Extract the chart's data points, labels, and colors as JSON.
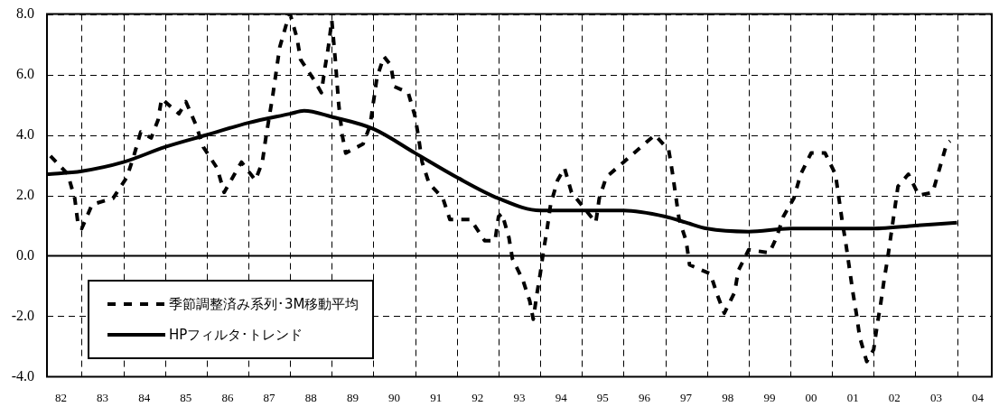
{
  "chart_data": {
    "type": "line",
    "categories": [
      null,
      null,
      null,
      null,
      "82",
      null,
      null,
      null,
      null,
      null,
      null,
      null,
      null,
      null,
      null,
      null,
      "83",
      null,
      null,
      null,
      null,
      null,
      null,
      null,
      null,
      null,
      null,
      null,
      "84",
      null,
      null,
      null,
      null,
      null,
      null,
      null,
      null,
      null,
      null,
      null,
      "85",
      null,
      null,
      null,
      null,
      null,
      null,
      null,
      null,
      null,
      null,
      null,
      "86",
      null,
      null,
      null,
      null,
      null,
      null,
      null,
      null,
      null,
      null,
      null,
      "87",
      null,
      null,
      null,
      null,
      null,
      null,
      null,
      null,
      null,
      null,
      null,
      "88",
      null,
      null,
      null,
      null,
      null,
      null,
      null,
      null,
      null,
      null,
      null,
      "89",
      null,
      null,
      null,
      null,
      null,
      null,
      null,
      null,
      null,
      null,
      null,
      "90",
      null,
      null,
      null,
      null,
      null,
      null,
      null,
      null,
      null,
      null,
      null,
      "91",
      null,
      null,
      null,
      null,
      null,
      null,
      null,
      null,
      null,
      null,
      null,
      "92",
      null,
      null,
      null,
      null,
      null,
      null,
      null,
      null,
      null,
      null,
      null,
      "93",
      null,
      null,
      null,
      null,
      null,
      null,
      null,
      null,
      null,
      null,
      null,
      "94",
      null,
      null,
      null,
      null,
      null,
      null,
      null,
      null,
      null,
      null,
      null,
      "95",
      null,
      null,
      null,
      null,
      null,
      null,
      null,
      null,
      null,
      null,
      null,
      "96",
      null,
      null,
      null,
      null,
      null,
      null,
      null,
      null,
      null,
      null,
      null,
      "97",
      null,
      null,
      null,
      null,
      null,
      null,
      null,
      null,
      null,
      null,
      null,
      "98",
      null,
      null,
      null,
      null,
      null,
      null,
      null,
      null,
      null,
      null,
      null,
      "99",
      null,
      null,
      null,
      null,
      null,
      null,
      null,
      null,
      null,
      null,
      null,
      "00",
      null,
      null,
      null,
      null,
      null,
      null,
      null,
      null,
      null,
      null,
      null,
      "01",
      null,
      null,
      null,
      null,
      null,
      null,
      null,
      null,
      null,
      null,
      null,
      "02",
      null,
      null,
      null,
      null,
      null,
      null,
      null,
      null,
      null,
      null,
      null,
      "03",
      null,
      null,
      null,
      null,
      null,
      null,
      null,
      null,
      null,
      null,
      null,
      "04",
      null,
      null,
      null,
      null
    ],
    "ylim": [
      -4,
      8
    ],
    "yticks": [
      {
        "value": -4,
        "label": "-4.0"
      },
      {
        "value": -2,
        "label": "-2.0"
      },
      {
        "value": 0,
        "label": "0.0"
      },
      {
        "value": 2,
        "label": "2.0"
      },
      {
        "value": 4,
        "label": "4.0"
      },
      {
        "value": 6,
        "label": "6.0"
      },
      {
        "value": 8,
        "label": "8.0"
      }
    ],
    "grid": true,
    "legend": "bottom left",
    "marker": "none",
    "series": [
      {
        "name": "季節調整済み系列･3M移動平均",
        "color": "#000000",
        "line_style": "dashed",
        "values": [
          null,
          3.3,
          null,
          null,
          null,
          null,
          2.7,
          null,
          1.9,
          1.0,
          0.9,
          null,
          null,
          1.7,
          null,
          null,
          null,
          null,
          null,
          1.9,
          null,
          null,
          null,
          2.6,
          null,
          3.3,
          null,
          4.1,
          null,
          null,
          3.9,
          null,
          4.5,
          5.2,
          null,
          null,
          4.9,
          null,
          4.7,
          null,
          5.1,
          null,
          null,
          4.3,
          null,
          3.6,
          null,
          null,
          null,
          2.9,
          null,
          2.1,
          null,
          null,
          2.7,
          null,
          3.1,
          null,
          null,
          null,
          2.5,
          null,
          3.1,
          3.9,
          4.6,
          5.3,
          6.1,
          6.9,
          null,
          7.7,
          8.0,
          null,
          7.2,
          6.5,
          null,
          null,
          null,
          5.8,
          null,
          5.4,
          6.2,
          6.9,
          7.8,
          6.5,
          5.0,
          4.0,
          3.4,
          null,
          null,
          null,
          null,
          3.7,
          null,
          4.3,
          5.1,
          5.9,
          null,
          6.6,
          null,
          6.3,
          5.6,
          null,
          null,
          null,
          5.4,
          null,
          4.6,
          3.9,
          3.1,
          null,
          2.4,
          null,
          null,
          null,
          1.9,
          null,
          1.2,
          null,
          null,
          null,
          null,
          null,
          1.2,
          null,
          null,
          null,
          0.5,
          null,
          null,
          0.5,
          1.3,
          1.4,
          null,
          0.6,
          -0.1,
          null,
          null,
          -0.8,
          null,
          -1.5,
          -2.1,
          -1.3,
          -0.6,
          0.2,
          0.9,
          1.7,
          null,
          2.5,
          null,
          2.9,
          null,
          2.1,
          null,
          null,
          null,
          null,
          null,
          null,
          1.1,
          1.9,
          null,
          2.6,
          null,
          null,
          null,
          null,
          3.1,
          null,
          null,
          null,
          null,
          3.6,
          null,
          null,
          null,
          4.0,
          null,
          null,
          null,
          3.5,
          2.8,
          2.0,
          1.2,
          null,
          0.5,
          -0.3,
          null,
          null,
          null,
          null,
          null,
          -0.6,
          null,
          -1.3,
          null,
          -1.9,
          null,
          null,
          -1.2,
          -0.5,
          null,
          null,
          0.2,
          null,
          null,
          null,
          null,
          null,
          0.1,
          null,
          0.6,
          null,
          1.3,
          null,
          null,
          1.9,
          null,
          2.7,
          null,
          null,
          3.4,
          null,
          null,
          null,
          3.4,
          null,
          null,
          2.7,
          1.9,
          1.1,
          0.4,
          -0.4,
          -1.2,
          -1.9,
          -2.7,
          null,
          -3.5,
          null,
          -3.1,
          -2.3,
          -1.6,
          -0.8,
          -0.1,
          0.7,
          1.5,
          2.3,
          null,
          null,
          2.7,
          null,
          null,
          2.0,
          null,
          null,
          null,
          2.1,
          null,
          2.9,
          null,
          3.7,
          3.8,
          null,
          null,
          null,
          null,
          null,
          null,
          null,
          null,
          null,
          null,
          null,
          null
        ]
      },
      {
        "name": "HPフィルタ･トレンド",
        "color": "#000000",
        "line_style": "solid",
        "values": [
          2.7,
          null,
          null,
          null,
          null,
          null,
          null,
          null,
          null,
          null,
          2.8,
          null,
          null,
          null,
          null,
          null,
          null,
          null,
          null,
          null,
          null,
          null,
          3.1,
          null,
          null,
          null,
          null,
          null,
          null,
          null,
          null,
          null,
          null,
          null,
          3.6,
          null,
          null,
          null,
          null,
          null,
          null,
          null,
          null,
          null,
          null,
          null,
          4.0,
          null,
          null,
          null,
          null,
          null,
          null,
          null,
          null,
          null,
          null,
          null,
          4.4,
          null,
          null,
          null,
          null,
          null,
          null,
          null,
          null,
          null,
          null,
          null,
          4.7,
          null,
          null,
          null,
          4.8,
          null,
          null,
          null,
          null,
          null,
          null,
          null,
          4.6,
          null,
          null,
          null,
          null,
          null,
          null,
          null,
          null,
          null,
          null,
          null,
          4.2,
          null,
          null,
          null,
          null,
          null,
          null,
          null,
          null,
          null,
          null,
          null,
          3.4,
          null,
          null,
          null,
          null,
          null,
          null,
          null,
          null,
          null,
          null,
          null,
          2.6,
          null,
          null,
          null,
          null,
          null,
          null,
          null,
          null,
          null,
          null,
          null,
          1.9,
          null,
          null,
          null,
          null,
          null,
          null,
          null,
          null,
          null,
          null,
          null,
          1.5,
          null,
          null,
          null,
          null,
          null,
          null,
          null,
          null,
          null,
          null,
          null,
          1.5,
          null,
          null,
          null,
          null,
          null,
          null,
          null,
          null,
          null,
          null,
          null,
          1.5,
          null,
          null,
          null,
          null,
          null,
          null,
          null,
          null,
          null,
          null,
          null,
          1.3,
          null,
          null,
          null,
          null,
          null,
          1.1,
          null,
          null,
          null,
          null,
          null,
          0.9,
          null,
          null,
          null,
          null,
          null,
          null,
          null,
          null,
          null,
          null,
          null,
          0.8,
          null,
          null,
          null,
          null,
          null,
          null,
          null,
          null,
          null,
          null,
          null,
          0.9,
          null,
          null,
          null,
          null,
          null,
          null,
          null,
          null,
          null,
          null,
          null,
          0.9,
          null,
          null,
          null,
          null,
          null,
          null,
          null,
          null,
          null,
          null,
          null,
          0.9,
          null,
          null,
          null,
          null,
          null,
          null,
          null,
          null,
          null,
          null,
          null,
          1.0,
          null,
          null,
          null,
          null,
          null,
          null,
          null,
          null,
          null,
          null,
          null,
          1.1,
          null,
          null,
          null,
          null,
          null,
          null,
          null,
          null,
          null,
          null
        ]
      }
    ]
  }
}
